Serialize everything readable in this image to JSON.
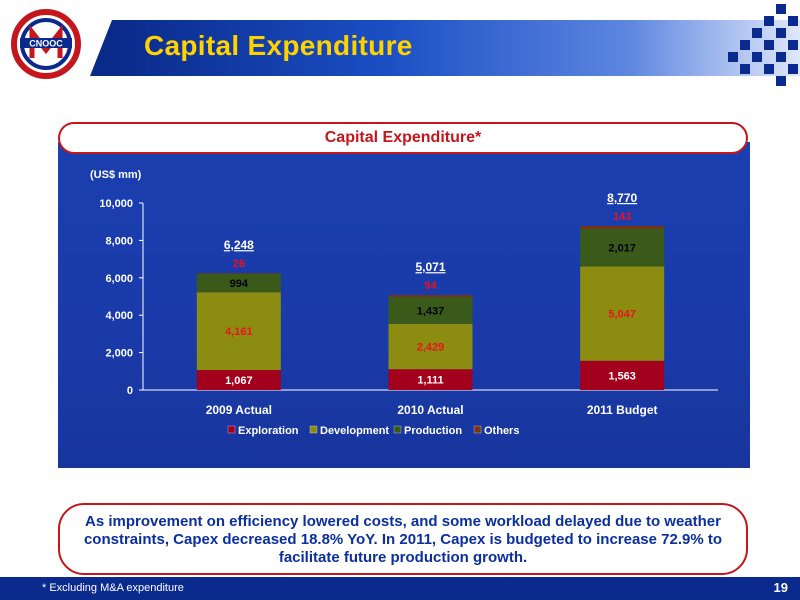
{
  "header": {
    "title": "Capital Expenditure",
    "logo": {
      "icon": "cnooc-logo",
      "text": "CNOOC"
    }
  },
  "chart_data": {
    "type": "bar",
    "stacked": true,
    "title": "Capital Expenditure*",
    "ylabel": "(US$ mm)",
    "ylim": [
      0,
      10000
    ],
    "yticks": [
      "0",
      "2,000",
      "4,000",
      "6,000",
      "8,000",
      "10,000"
    ],
    "categories": [
      "2009 Actual",
      "2010 Actual",
      "2011 Budget"
    ],
    "series": [
      {
        "name": "Exploration",
        "color": "#a3001e",
        "labelColor": "#ffffff",
        "values": [
          1067,
          1111,
          1563
        ],
        "labels": [
          "1,067",
          "1,111",
          "1,563"
        ]
      },
      {
        "name": "Development",
        "color": "#8c8c10",
        "labelColor": "#e8141e",
        "values": [
          4161,
          2429,
          5047
        ],
        "labels": [
          "4,161",
          "2,429",
          "5,047"
        ]
      },
      {
        "name": "Production",
        "color": "#3a5a1a",
        "labelColor": "#000000",
        "values": [
          994,
          1437,
          2017
        ],
        "labels": [
          "994",
          "1,437",
          "2,017"
        ]
      },
      {
        "name": "Others",
        "color": "#7a3410",
        "labelColor": "#e8141e",
        "values": [
          26,
          94,
          143
        ],
        "labels": [
          "26",
          "94",
          "143"
        ]
      }
    ],
    "totals": [
      "6,248",
      "5,071",
      "8,770"
    ],
    "legend": "bottom"
  },
  "note": "As improvement on efficiency lowered costs, and some workload delayed due to weather constraints, Capex decreased 18.8% YoY. In 2011, Capex is budgeted to increase 72.9% to facilitate future production growth.",
  "footer": {
    "footnote": "* Excluding M&A expenditure",
    "page": "19"
  },
  "colors": {
    "brand_blue": "#0b2a8e",
    "title_yellow": "#ffd200",
    "accent_red": "#c4161c"
  }
}
